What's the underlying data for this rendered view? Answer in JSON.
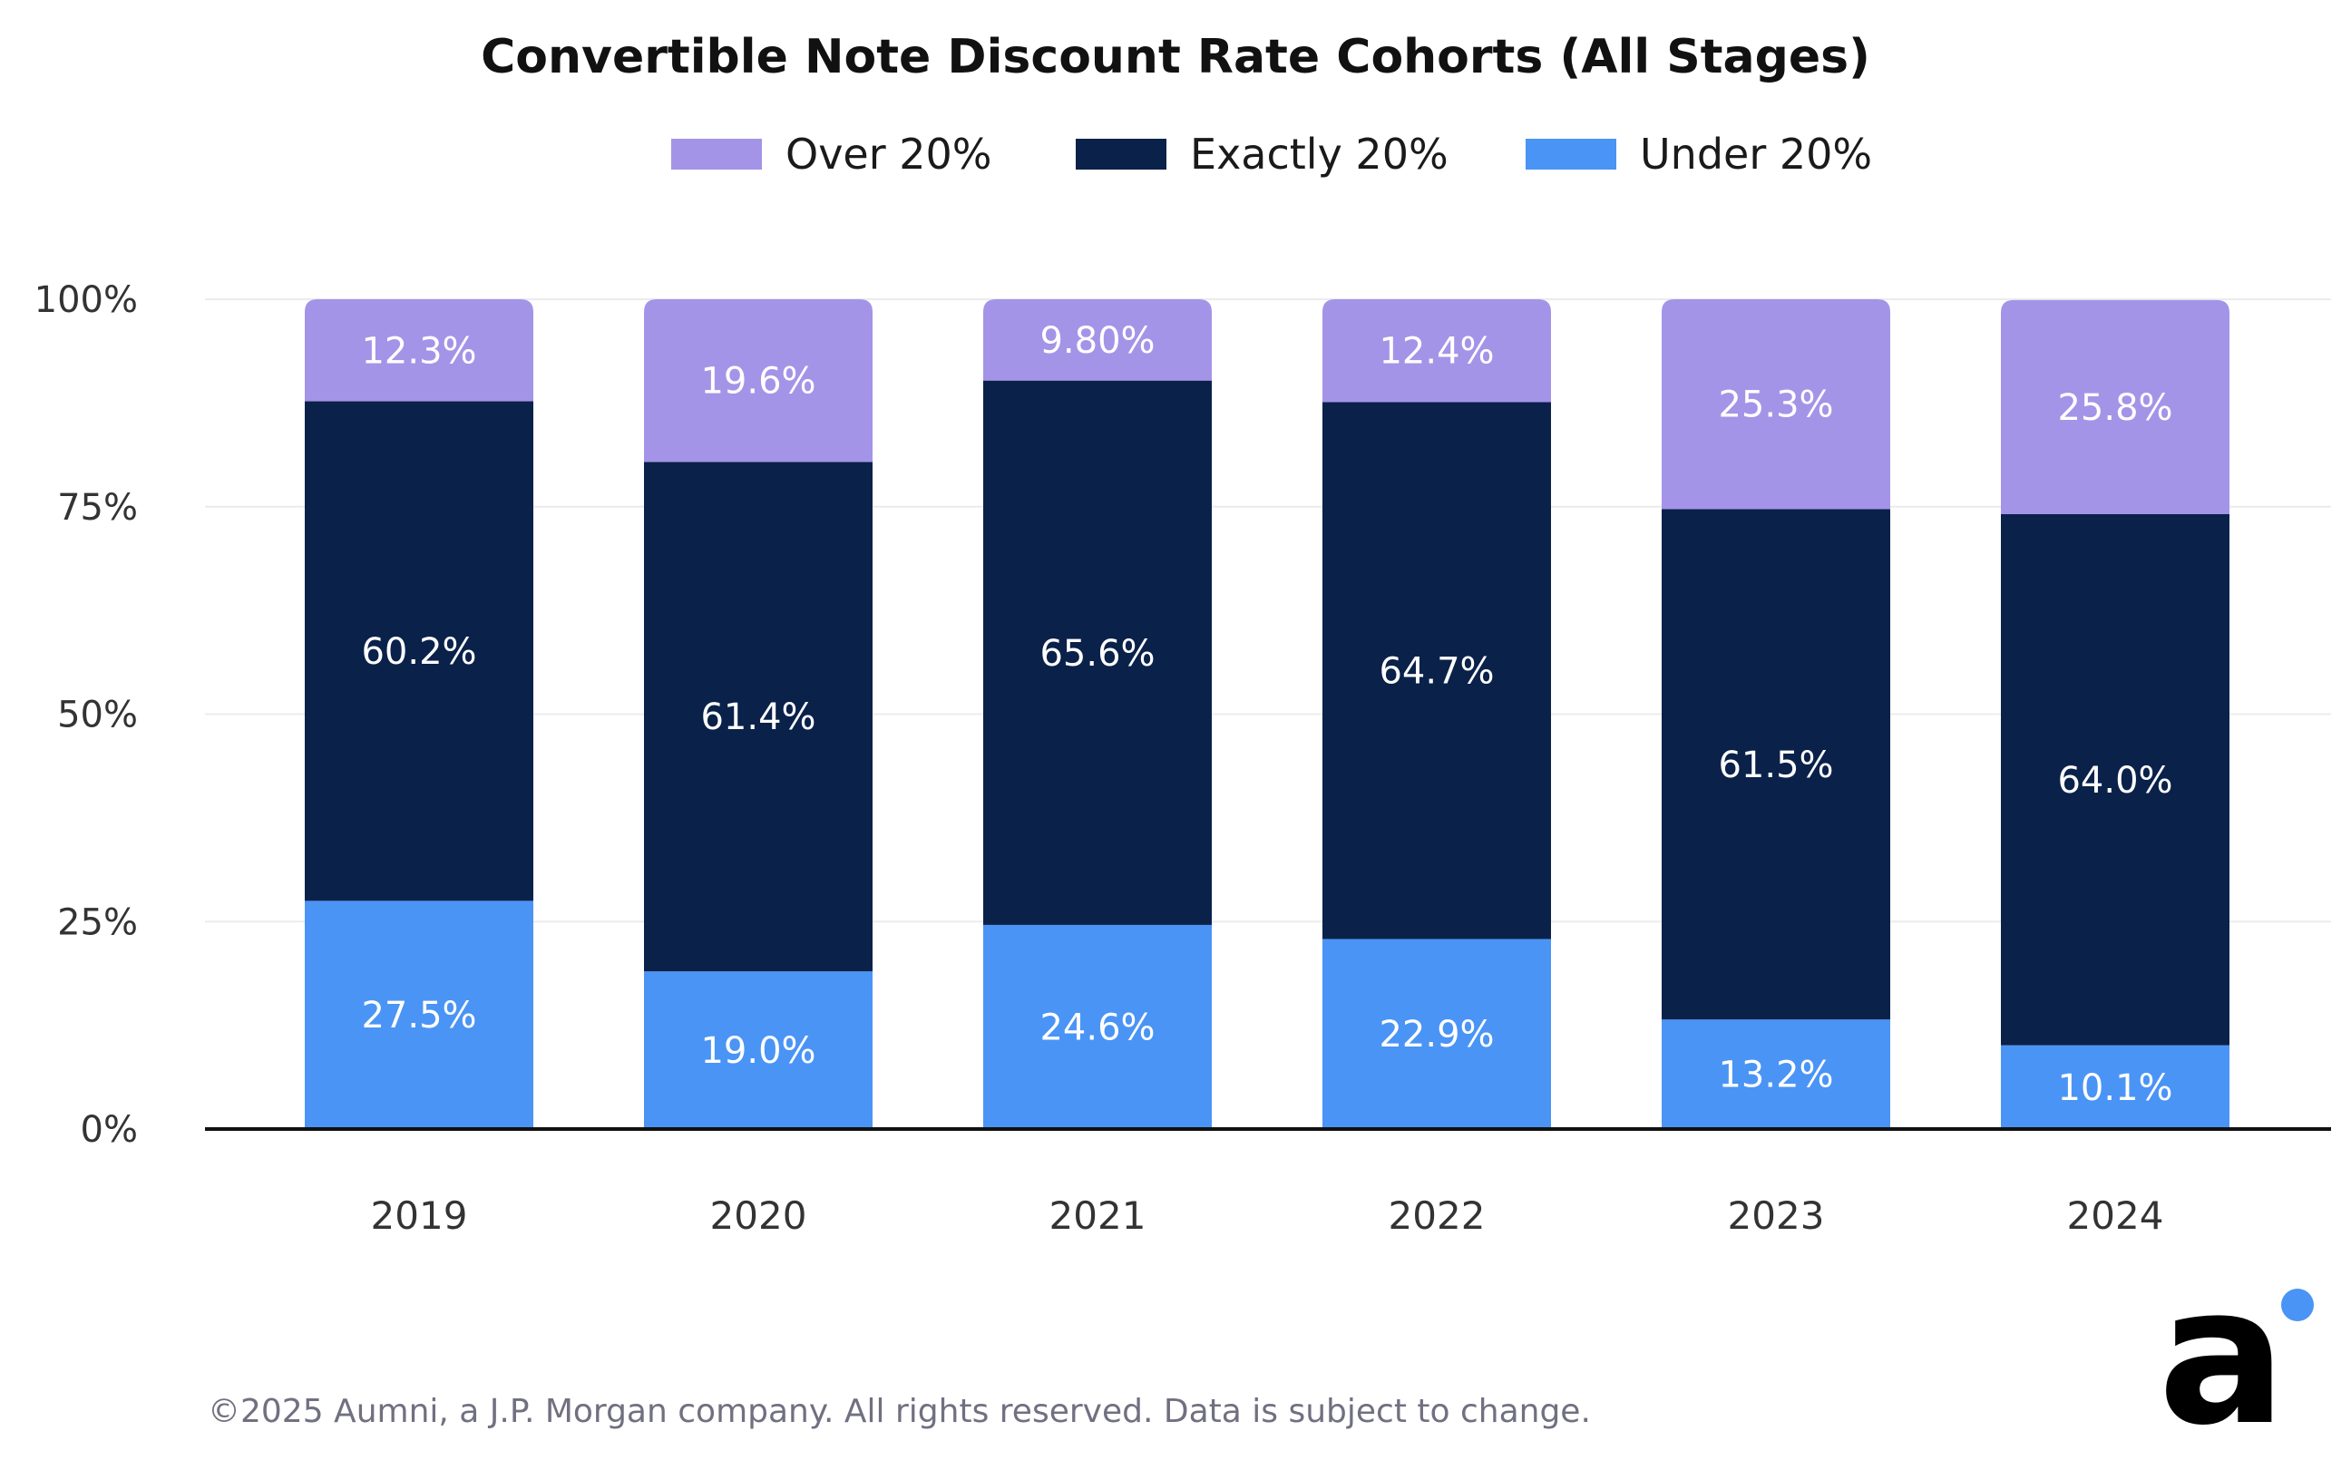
{
  "chart_data": {
    "type": "bar",
    "stacked": true,
    "title": "Convertible Note Discount Rate Cohorts (All Stages)",
    "categories": [
      "2019",
      "2020",
      "2021",
      "2022",
      "2023",
      "2024"
    ],
    "series": [
      {
        "name": "Under 20%",
        "color": "#4a94f5",
        "values": [
          27.5,
          19.0,
          24.6,
          22.9,
          13.2,
          10.1
        ],
        "labels": [
          "27.5%",
          "19.0%",
          "24.6%",
          "22.9%",
          "13.2%",
          "10.1%"
        ]
      },
      {
        "name": "Exactly 20%",
        "color": "#0a214a",
        "values": [
          60.2,
          61.4,
          65.6,
          64.7,
          61.5,
          64.0
        ],
        "labels": [
          "60.2%",
          "61.4%",
          "65.6%",
          "64.7%",
          "61.5%",
          "64.0%"
        ]
      },
      {
        "name": "Over 20%",
        "color": "#a494e8",
        "values": [
          12.3,
          19.6,
          9.8,
          12.4,
          25.3,
          25.8
        ],
        "labels": [
          "12.3%",
          "19.6%",
          "9.80%",
          "12.4%",
          "25.3%",
          "25.8%"
        ]
      }
    ],
    "legend_order": [
      "Over 20%",
      "Exactly 20%",
      "Under 20%"
    ],
    "legend_position": "top-center",
    "xlabel": "",
    "ylabel": "",
    "ylim": [
      0,
      100
    ],
    "yticks": [
      0,
      25,
      50,
      75,
      100
    ],
    "ytick_labels": [
      "0%",
      "25%",
      "50%",
      "75%",
      "100%"
    ],
    "grid": true
  },
  "footer": {
    "copyright": "©2025 Aumni, a J.P. Morgan company. All rights reserved. Data is subject to change."
  },
  "logo": {
    "text": "a",
    "dot_color": "#4a94f5"
  }
}
